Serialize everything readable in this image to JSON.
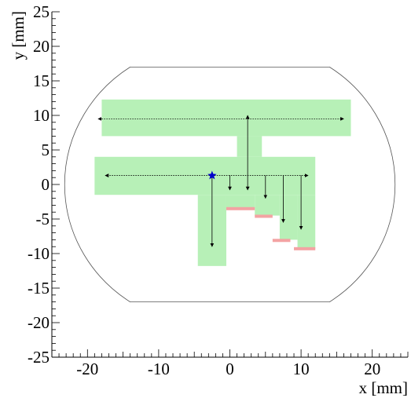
{
  "chart_data": {
    "type": "scatter",
    "title": "",
    "xlabel": "x [mm]",
    "ylabel": "y [mm]",
    "xlim": [
      -25,
      25
    ],
    "ylim": [
      -25,
      25
    ],
    "grid": false,
    "x_ticks": [
      -20,
      -10,
      0,
      10,
      20
    ],
    "y_ticks": [
      -25,
      -20,
      -15,
      -10,
      -5,
      0,
      5,
      10,
      15,
      20,
      25
    ],
    "x_tick_labels": [
      "-20",
      "-10",
      "0",
      "10",
      "20"
    ],
    "y_tick_labels": [
      "-25",
      "-20",
      "-15",
      "-10",
      "-5",
      "0",
      "5",
      "10",
      "15",
      "20",
      "25"
    ],
    "boundary": {
      "arc_center": [
        0,
        0
      ],
      "top_flat_y": 17,
      "bottom_flat_y": -17,
      "flat_x_range": [
        -14,
        14
      ],
      "color": "#555555"
    },
    "scan_regions": {
      "color": "#b7f0b7",
      "rects": [
        {
          "x": [
            -18,
            17
          ],
          "y": [
            7,
            12.3
          ]
        },
        {
          "x": [
            1,
            4.5
          ],
          "y": [
            4,
            7
          ]
        },
        {
          "x": [
            -19,
            12
          ],
          "y": [
            -1.5,
            4
          ]
        },
        {
          "x": [
            -4.5,
            -0.5
          ],
          "y": [
            -11.8,
            -1.5
          ]
        },
        {
          "x": [
            -0.5,
            3.5
          ],
          "y": [
            -3.5,
            -1.5
          ]
        },
        {
          "x": [
            3.5,
            7
          ],
          "y": [
            -4.5,
            -1.5
          ]
        },
        {
          "x": [
            7,
            9.5
          ],
          "y": [
            -8,
            -1.5
          ]
        },
        {
          "x": [
            9.5,
            12
          ],
          "y": [
            -9.3,
            -1.5
          ]
        }
      ]
    },
    "endcap_marks": {
      "color": "#f3a3a3",
      "segments": [
        {
          "x": [
            -0.5,
            3.5
          ],
          "y": -3.5
        },
        {
          "x": [
            3.5,
            6
          ],
          "y": -4.6
        },
        {
          "x": [
            6,
            8.5
          ],
          "y": -8.1
        },
        {
          "x": [
            9,
            12
          ],
          "y": -9.3
        }
      ]
    },
    "start_point": {
      "x": -2.5,
      "y": 1.3,
      "color": "#0000cc"
    },
    "arrows": [
      {
        "from": [
          -2.5,
          1.3
        ],
        "to": [
          -17.5,
          1.3
        ],
        "dotted": true
      },
      {
        "from": [
          -2.5,
          1.3
        ],
        "to": [
          11,
          1.3
        ],
        "dotted": true
      },
      {
        "from": [
          -18,
          9.5
        ],
        "to": [
          16,
          9.5
        ],
        "dotted": true
      },
      {
        "from": [
          -18,
          9.5
        ],
        "to": [
          -18.5,
          9.5
        ],
        "dotted": true
      },
      {
        "from": [
          2.5,
          1.3
        ],
        "to": [
          2.5,
          10
        ],
        "dotted": false
      },
      {
        "from": [
          -2.5,
          1.3
        ],
        "to": [
          -2.5,
          -9
        ],
        "dotted": false
      },
      {
        "from": [
          0,
          1.3
        ],
        "to": [
          0,
          -0.8
        ],
        "dotted": false
      },
      {
        "from": [
          2.5,
          1.3
        ],
        "to": [
          2.5,
          -0.8
        ],
        "dotted": false
      },
      {
        "from": [
          5,
          1.3
        ],
        "to": [
          5,
          -2
        ],
        "dotted": false
      },
      {
        "from": [
          7.5,
          1.3
        ],
        "to": [
          7.5,
          -5.5
        ],
        "dotted": false
      },
      {
        "from": [
          10,
          1.3
        ],
        "to": [
          10,
          -6.5
        ],
        "dotted": false
      }
    ]
  }
}
